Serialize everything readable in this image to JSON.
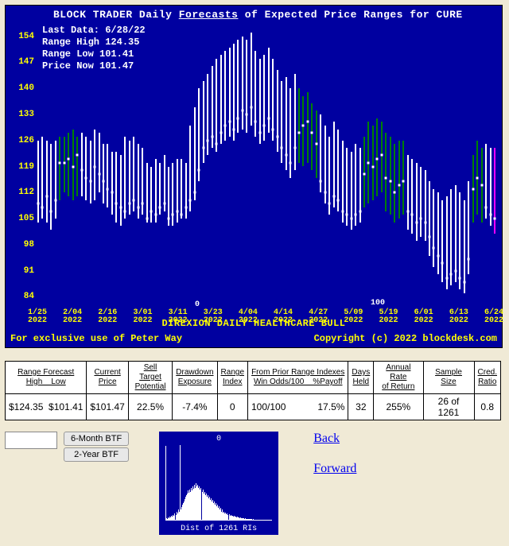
{
  "chart": {
    "title_prefix": "BLOCK TRADER Daily ",
    "title_underlined": "Forecasts",
    "title_suffix": " of Expected Price Ranges for  CURE",
    "info": {
      "last_data": "Last Data: 6/28/22",
      "range_high": "Range High 124.35",
      "range_low": "Range Low  101.41",
      "price_now": "Price Now  101.47"
    },
    "subtitle": "DIREXION DAILY HEALTHCARE BULL",
    "footer_left": "For exclusive use of Peter Way",
    "footer_right": "Copyright (c) 2022 blockdesk.com",
    "background_color": "#0000a0",
    "axis_color": "#ffff00",
    "bar_white": "#ffffff",
    "bar_green": "#008000",
    "bar_magenta": "#ff00ff",
    "ylim": [
      80,
      158
    ],
    "yticks": [
      84,
      91,
      98,
      105,
      112,
      119,
      126,
      133,
      140,
      147,
      154
    ],
    "xticks": [
      "1/25\n2022",
      "2/04\n2022",
      "2/16\n2022",
      "3/01\n2022",
      "3/11\n2022",
      "3/23\n2022",
      "4/04\n2022",
      "4/14\n2022",
      "4/27\n2022",
      "5/09\n2022",
      "5/19\n2022",
      "6/01\n2022",
      "6/13\n2022",
      "6/24\n2022"
    ],
    "annotations": [
      {
        "text": "0",
        "x": 0.345,
        "y_val": 83
      },
      {
        "text": "100",
        "x": 0.73,
        "y_val": 83.5
      }
    ],
    "series": [
      {
        "lo": 104,
        "hi": 126,
        "mid": 109,
        "c": "w"
      },
      {
        "lo": 105,
        "hi": 127,
        "mid": 108,
        "c": "w"
      },
      {
        "lo": 104,
        "hi": 126,
        "mid": 111,
        "c": "w"
      },
      {
        "lo": 102,
        "hi": 125,
        "mid": 107,
        "c": "w"
      },
      {
        "lo": 105,
        "hi": 126,
        "mid": 110,
        "c": "w"
      },
      {
        "lo": 110,
        "hi": 127,
        "mid": 120,
        "c": "g"
      },
      {
        "lo": 112,
        "hi": 127,
        "mid": 120,
        "c": "g"
      },
      {
        "lo": 111,
        "hi": 128,
        "mid": 121,
        "c": "g"
      },
      {
        "lo": 110,
        "hi": 129,
        "mid": 119,
        "c": "g"
      },
      {
        "lo": 111,
        "hi": 127,
        "mid": 122,
        "c": "g"
      },
      {
        "lo": 111,
        "hi": 128,
        "mid": 118,
        "c": "w"
      },
      {
        "lo": 110,
        "hi": 127,
        "mid": 116,
        "c": "w"
      },
      {
        "lo": 109,
        "hi": 126,
        "mid": 115,
        "c": "w"
      },
      {
        "lo": 110,
        "hi": 129,
        "mid": 119,
        "c": "w"
      },
      {
        "lo": 112,
        "hi": 128,
        "mid": 117,
        "c": "w"
      },
      {
        "lo": 109,
        "hi": 125,
        "mid": 115,
        "c": "w"
      },
      {
        "lo": 108,
        "hi": 125,
        "mid": 113,
        "c": "w"
      },
      {
        "lo": 106,
        "hi": 123,
        "mid": 112,
        "c": "w"
      },
      {
        "lo": 104,
        "hi": 123,
        "mid": 109,
        "c": "w"
      },
      {
        "lo": 103,
        "hi": 122,
        "mid": 108,
        "c": "w"
      },
      {
        "lo": 105,
        "hi": 127,
        "mid": 107,
        "c": "w"
      },
      {
        "lo": 106,
        "hi": 126,
        "mid": 109,
        "c": "w"
      },
      {
        "lo": 107,
        "hi": 127,
        "mid": 110,
        "c": "w"
      },
      {
        "lo": 105,
        "hi": 125,
        "mid": 108,
        "c": "w"
      },
      {
        "lo": 106,
        "hi": 124,
        "mid": 109,
        "c": "w"
      },
      {
        "lo": 104,
        "hi": 120,
        "mid": 105,
        "c": "w"
      },
      {
        "lo": 104,
        "hi": 119,
        "mid": 107,
        "c": "w"
      },
      {
        "lo": 104,
        "hi": 121,
        "mid": 106,
        "c": "w"
      },
      {
        "lo": 106,
        "hi": 120,
        "mid": 108,
        "c": "w"
      },
      {
        "lo": 107,
        "hi": 122,
        "mid": 109,
        "c": "w"
      },
      {
        "lo": 103,
        "hi": 119,
        "mid": 105,
        "c": "w"
      },
      {
        "lo": 103,
        "hi": 120,
        "mid": 106,
        "c": "w"
      },
      {
        "lo": 104,
        "hi": 121,
        "mid": 107,
        "c": "w"
      },
      {
        "lo": 105,
        "hi": 121,
        "mid": 106,
        "c": "w"
      },
      {
        "lo": 105,
        "hi": 120,
        "mid": 108,
        "c": "w"
      },
      {
        "lo": 107,
        "hi": 130,
        "mid": 110,
        "c": "w"
      },
      {
        "lo": 110,
        "hi": 135,
        "mid": 112,
        "c": "w"
      },
      {
        "lo": 115,
        "hi": 140,
        "mid": 118,
        "c": "w"
      },
      {
        "lo": 120,
        "hi": 142,
        "mid": 124,
        "c": "w"
      },
      {
        "lo": 122,
        "hi": 144,
        "mid": 126,
        "c": "w"
      },
      {
        "lo": 124,
        "hi": 146,
        "mid": 127,
        "c": "w"
      },
      {
        "lo": 123,
        "hi": 148,
        "mid": 125,
        "c": "w"
      },
      {
        "lo": 125,
        "hi": 149,
        "mid": 128,
        "c": "w"
      },
      {
        "lo": 126,
        "hi": 150,
        "mid": 130,
        "c": "w"
      },
      {
        "lo": 127,
        "hi": 151,
        "mid": 131,
        "c": "w"
      },
      {
        "lo": 126,
        "hi": 152,
        "mid": 129,
        "c": "w"
      },
      {
        "lo": 128,
        "hi": 153,
        "mid": 132,
        "c": "w"
      },
      {
        "lo": 129,
        "hi": 154,
        "mid": 134,
        "c": "w"
      },
      {
        "lo": 128,
        "hi": 153,
        "mid": 133,
        "c": "w"
      },
      {
        "lo": 130,
        "hi": 155,
        "mid": 135,
        "c": "w"
      },
      {
        "lo": 127,
        "hi": 150,
        "mid": 131,
        "c": "w"
      },
      {
        "lo": 125,
        "hi": 148,
        "mid": 128,
        "c": "w"
      },
      {
        "lo": 126,
        "hi": 149,
        "mid": 130,
        "c": "w"
      },
      {
        "lo": 128,
        "hi": 151,
        "mid": 132,
        "c": "w"
      },
      {
        "lo": 126,
        "hi": 148,
        "mid": 129,
        "c": "w"
      },
      {
        "lo": 123,
        "hi": 145,
        "mid": 127,
        "c": "w"
      },
      {
        "lo": 120,
        "hi": 142,
        "mid": 124,
        "c": "w"
      },
      {
        "lo": 118,
        "hi": 143,
        "mid": 122,
        "c": "w"
      },
      {
        "lo": 116,
        "hi": 140,
        "mid": 120,
        "c": "w"
      },
      {
        "lo": 118,
        "hi": 144,
        "mid": 124,
        "c": "w"
      },
      {
        "lo": 120,
        "hi": 140,
        "mid": 128,
        "c": "g"
      },
      {
        "lo": 119,
        "hi": 138,
        "mid": 130,
        "c": "g"
      },
      {
        "lo": 120,
        "hi": 139,
        "mid": 131,
        "c": "g"
      },
      {
        "lo": 118,
        "hi": 136,
        "mid": 128,
        "c": "g"
      },
      {
        "lo": 116,
        "hi": 134,
        "mid": 125,
        "c": "g"
      },
      {
        "lo": 112,
        "hi": 133,
        "mid": 115,
        "c": "w"
      },
      {
        "lo": 109,
        "hi": 130,
        "mid": 112,
        "c": "w"
      },
      {
        "lo": 106,
        "hi": 127,
        "mid": 109,
        "c": "w"
      },
      {
        "lo": 108,
        "hi": 131,
        "mid": 111,
        "c": "w"
      },
      {
        "lo": 107,
        "hi": 129,
        "mid": 110,
        "c": "w"
      },
      {
        "lo": 104,
        "hi": 126,
        "mid": 107,
        "c": "w"
      },
      {
        "lo": 103,
        "hi": 124,
        "mid": 106,
        "c": "w"
      },
      {
        "lo": 102,
        "hi": 123,
        "mid": 105,
        "c": "w"
      },
      {
        "lo": 103,
        "hi": 125,
        "mid": 106,
        "c": "w"
      },
      {
        "lo": 104,
        "hi": 124,
        "mid": 107,
        "c": "w"
      },
      {
        "lo": 108,
        "hi": 127,
        "mid": 117,
        "c": "g"
      },
      {
        "lo": 109,
        "hi": 131,
        "mid": 120,
        "c": "g"
      },
      {
        "lo": 110,
        "hi": 130,
        "mid": 119,
        "c": "g"
      },
      {
        "lo": 111,
        "hi": 132,
        "mid": 121,
        "c": "g"
      },
      {
        "lo": 112,
        "hi": 131,
        "mid": 122,
        "c": "g"
      },
      {
        "lo": 107,
        "hi": 128,
        "mid": 116,
        "c": "g"
      },
      {
        "lo": 106,
        "hi": 127,
        "mid": 115,
        "c": "g"
      },
      {
        "lo": 104,
        "hi": 125,
        "mid": 112,
        "c": "g"
      },
      {
        "lo": 105,
        "hi": 126,
        "mid": 114,
        "c": "g"
      },
      {
        "lo": 106,
        "hi": 126,
        "mid": 115,
        "c": "g"
      },
      {
        "lo": 102,
        "hi": 122,
        "mid": 107,
        "c": "w"
      },
      {
        "lo": 101,
        "hi": 121,
        "mid": 106,
        "c": "w"
      },
      {
        "lo": 99,
        "hi": 120,
        "mid": 104,
        "c": "w"
      },
      {
        "lo": 100,
        "hi": 119,
        "mid": 105,
        "c": "w"
      },
      {
        "lo": 99,
        "hi": 118,
        "mid": 104,
        "c": "w"
      },
      {
        "lo": 95,
        "hi": 115,
        "mid": 100,
        "c": "w"
      },
      {
        "lo": 92,
        "hi": 113,
        "mid": 97,
        "c": "w"
      },
      {
        "lo": 90,
        "hi": 112,
        "mid": 95,
        "c": "w"
      },
      {
        "lo": 88,
        "hi": 110,
        "mid": 93,
        "c": "w"
      },
      {
        "lo": 86,
        "hi": 111,
        "mid": 89,
        "c": "w"
      },
      {
        "lo": 87,
        "hi": 113,
        "mid": 90,
        "c": "w"
      },
      {
        "lo": 88,
        "hi": 114,
        "mid": 91,
        "c": "w"
      },
      {
        "lo": 86,
        "hi": 112,
        "mid": 89,
        "c": "w"
      },
      {
        "lo": 85,
        "hi": 110,
        "mid": 88,
        "c": "w"
      },
      {
        "lo": 90,
        "hi": 115,
        "mid": 94,
        "c": "w"
      },
      {
        "lo": 104,
        "hi": 122,
        "mid": 113,
        "c": "g"
      },
      {
        "lo": 106,
        "hi": 126,
        "mid": 116,
        "c": "g"
      },
      {
        "lo": 104,
        "hi": 124,
        "mid": 114,
        "c": "g"
      },
      {
        "lo": 105,
        "hi": 125,
        "mid": 108,
        "c": "w"
      },
      {
        "lo": 103,
        "hi": 124,
        "mid": 106,
        "c": "w"
      },
      {
        "lo": 101,
        "hi": 124,
        "mid": 105,
        "c": "m"
      }
    ]
  },
  "table": {
    "headers": [
      "Range Forecast<br>High&nbsp;&nbsp;&nbsp;&nbsp;Low",
      "Current<br>Price",
      "Sell Target<br>Potential",
      "Drawdown<br>Exposure",
      "Range<br>Index",
      "From Prior Range Indexes<br>Win Odds/100&nbsp;&nbsp;&nbsp;&nbsp;%Payoff",
      "Days<br>Held",
      "Annual Rate<br>of Return",
      "Sample Size",
      "Cred.<br>Ratio"
    ],
    "row": [
      "$124.35&nbsp;&nbsp;$101.41",
      "$101.47",
      "22.5%",
      "-7.4%",
      "0",
      "100/100&nbsp;&nbsp;&nbsp;&nbsp;&nbsp;&nbsp;&nbsp;&nbsp;&nbsp;&nbsp;&nbsp;&nbsp;17.5%",
      "32",
      "255%",
      "26 of 1261",
      "0.8"
    ]
  },
  "controls": {
    "btn1": "6-Month BTF",
    "btn2": "2-Year BTF"
  },
  "histogram": {
    "top_label": "0",
    "bottom_label": "Dist of 1261 RIs",
    "bars": [
      2,
      1,
      3,
      2,
      4,
      3,
      5,
      4,
      6,
      5,
      8,
      6,
      10,
      8,
      12,
      10,
      90,
      12,
      15,
      18,
      20,
      22,
      25,
      28,
      30,
      32,
      35,
      33,
      36,
      34,
      38,
      35,
      40,
      37,
      42,
      38,
      44,
      40,
      42,
      38,
      40,
      36,
      38,
      34,
      36,
      32,
      34,
      30,
      32,
      28,
      30,
      26,
      28,
      24,
      26,
      22,
      24,
      20,
      22,
      18,
      20,
      16,
      18,
      14,
      16,
      12,
      14,
      10,
      12,
      9,
      10,
      8,
      9,
      7,
      8,
      6,
      7,
      5,
      6,
      5,
      5,
      4,
      5,
      4,
      4,
      3,
      4,
      3,
      3,
      2,
      3,
      2,
      2,
      2,
      2,
      1,
      2,
      1,
      1,
      1,
      1,
      1,
      1,
      1,
      1,
      0,
      1,
      0,
      0,
      0,
      0,
      0,
      0,
      0,
      0,
      0,
      0,
      0,
      0,
      0,
      0,
      0,
      0,
      0,
      0,
      0,
      0,
      0,
      0,
      0
    ]
  },
  "links": {
    "back": "Back",
    "forward": "Forward"
  }
}
